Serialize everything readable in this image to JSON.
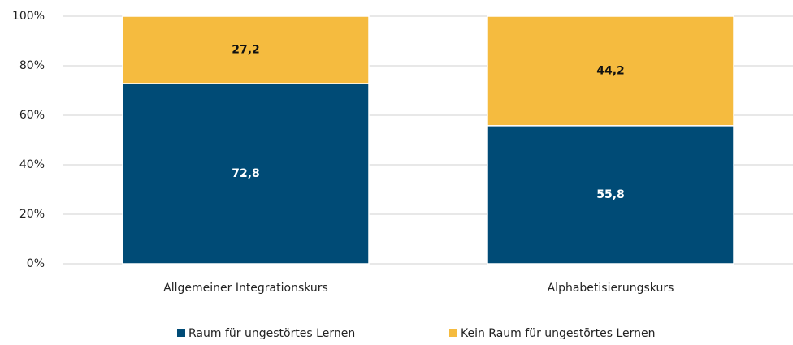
{
  "chart_data": {
    "type": "stacked_bar",
    "categories": [
      "Allgemeiner Integrationskurs",
      "Alphabetisierungskurs"
    ],
    "series": [
      {
        "name": "Raum für ungestörtes Lernen",
        "color": "#004b76",
        "values": [
          72.8,
          55.8
        ],
        "value_labels": [
          "72,8",
          "55,8"
        ],
        "label_color": "#ffffff"
      },
      {
        "name": "Kein Raum für ungestörtes Lernen",
        "color": "#f5bb3f",
        "values": [
          27.2,
          44.2
        ],
        "value_labels": [
          "27,2",
          "44,2"
        ],
        "label_color": "#111111"
      }
    ],
    "ylim": [
      0,
      100
    ],
    "yticks": [
      {
        "value": 0,
        "label": "0%"
      },
      {
        "value": 20,
        "label": "20%"
      },
      {
        "value": 40,
        "label": "40%"
      },
      {
        "value": 60,
        "label": "60%"
      },
      {
        "value": 80,
        "label": "80%"
      },
      {
        "value": 100,
        "label": "100%"
      }
    ],
    "grid": true,
    "legend": "bottom"
  }
}
